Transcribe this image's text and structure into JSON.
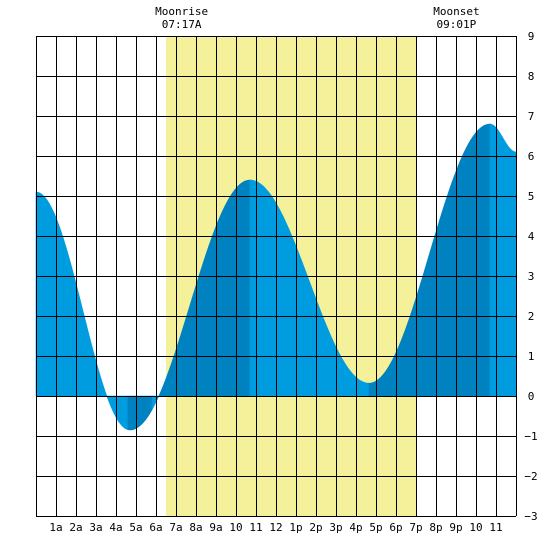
{
  "chart_data": {
    "type": "area",
    "title": "",
    "xlabel": "",
    "ylabel": "",
    "x_tick_labels": [
      "1a",
      "2a",
      "3a",
      "4a",
      "5a",
      "6a",
      "7a",
      "8a",
      "9a",
      "10",
      "11",
      "12",
      "1p",
      "2p",
      "3p",
      "4p",
      "5p",
      "6p",
      "7p",
      "8p",
      "9p",
      "10",
      "11"
    ],
    "xlim_hours": [
      0,
      24
    ],
    "ylim": [
      -3,
      9
    ],
    "y_ticks": [
      -3,
      -2,
      -1,
      0,
      1,
      2,
      3,
      4,
      5,
      6,
      7,
      8,
      9
    ],
    "grid": true,
    "moon_events": [
      {
        "label": "Moonrise",
        "time": "07:17A",
        "hour": 7.28
      },
      {
        "label": "Moonset",
        "time": "09:01P",
        "hour": 21.02
      }
    ],
    "highlight_hours": [
      6.5,
      19.0
    ],
    "tide_extremes": [
      {
        "hour": 0.0,
        "height": 5.1
      },
      {
        "hour": 4.7,
        "height": -0.85
      },
      {
        "hour": 10.7,
        "height": 5.4
      },
      {
        "hour": 16.65,
        "height": 0.32
      },
      {
        "hour": 22.7,
        "height": 6.8
      },
      {
        "hour": 24.0,
        "height": 6.1
      }
    ],
    "shade_bands": [
      {
        "from": 0.0,
        "to": 4.6,
        "color": "#009ce0"
      },
      {
        "from": 4.6,
        "to": 5.8,
        "color": "#0082c0"
      },
      {
        "from": 5.8,
        "to": 6.2,
        "color": "#009ce0"
      },
      {
        "from": 6.2,
        "to": 10.7,
        "color": "#0082c0"
      },
      {
        "from": 10.7,
        "to": 16.65,
        "color": "#009ce0"
      },
      {
        "from": 16.65,
        "to": 22.7,
        "color": "#0082c0"
      },
      {
        "from": 22.7,
        "to": 24.0,
        "color": "#009ce0"
      }
    ],
    "colors": {
      "highlight": "#f5f09a",
      "grid": "#000000"
    }
  }
}
